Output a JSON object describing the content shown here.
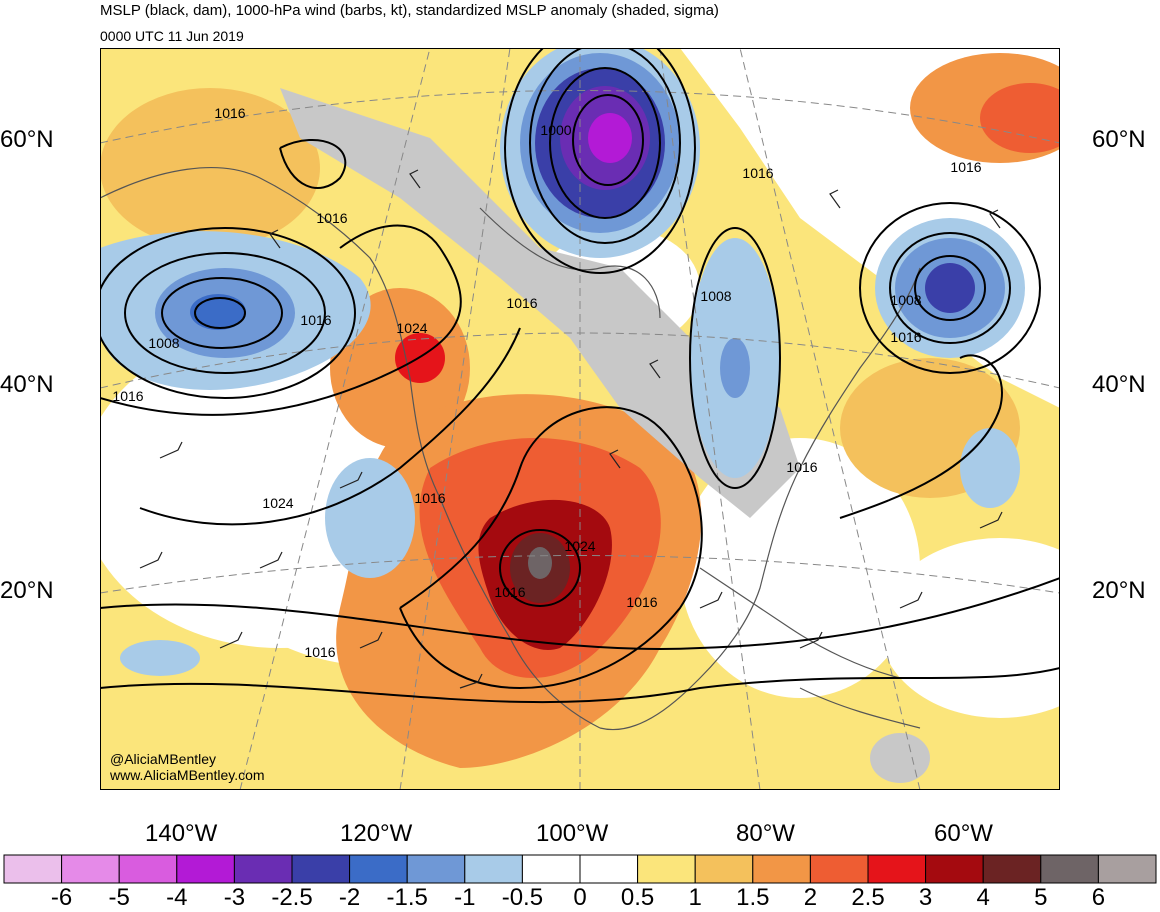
{
  "title": "MSLP (black, dam), 1000-hPa wind (barbs, kt), standardized MSLP anomaly (shaded, sigma)",
  "subtitle": "0000 UTC 11 Jun 2019",
  "lat_labels": [
    "60°N",
    "40°N",
    "20°N"
  ],
  "lon_labels": [
    "140°W",
    "120°W",
    "100°W",
    "80°W",
    "60°W"
  ],
  "credit_line1": "@AliciaMBentley",
  "credit_line2": "www.AliciaMBentley.com",
  "contour_labels": [
    "1016",
    "1000",
    "1016",
    "1016",
    "1016",
    "1008",
    "1008",
    "1016",
    "1016",
    "1008",
    "1024",
    "1016",
    "1016",
    "1024",
    "1016",
    "1016",
    "1016",
    "1016",
    "1016",
    "1024"
  ],
  "colorbar": {
    "colors": [
      "#ebbfeb",
      "#e58ae8",
      "#d95cdf",
      "#b31ad6",
      "#6a2db3",
      "#3a3fa8",
      "#3b6cc7",
      "#6f98d6",
      "#a8cbe8",
      "#ffffff",
      "#ffffff",
      "#fbe57b",
      "#f4c15c",
      "#f29646",
      "#ee5d33",
      "#e5141a",
      "#a40a0f",
      "#6b2323",
      "#6e6466",
      "#a89f9f"
    ],
    "ticks": [
      "-6",
      "-5",
      "-4",
      "-3",
      "-2.5",
      "-2",
      "-1.5",
      "-1",
      "-0.5",
      "0",
      "0.5",
      "1",
      "1.5",
      "2",
      "2.5",
      "3",
      "4",
      "5",
      "6"
    ]
  }
}
